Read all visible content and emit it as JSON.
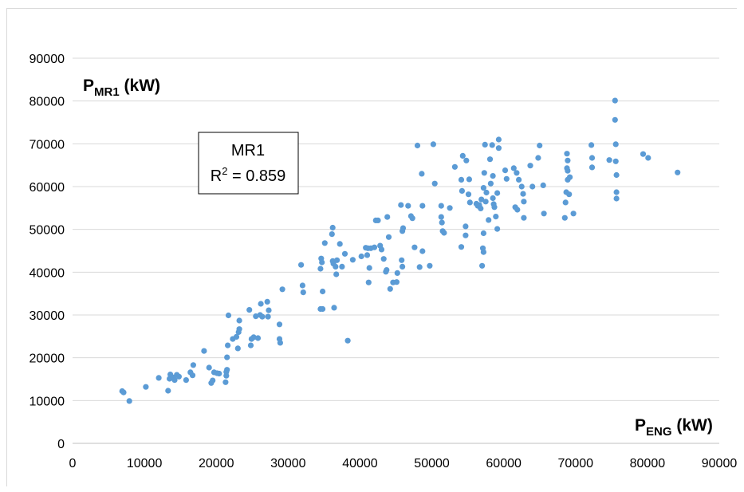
{
  "chart_data": {
    "type": "scatter",
    "xlabel": {
      "main": "P",
      "sub": "ENG",
      "unit": " (kW)"
    },
    "ylabel": {
      "main": "P",
      "sub": "MR1",
      "unit": " (kW)"
    },
    "xlim": [
      0,
      90000
    ],
    "ylim": [
      0,
      90000
    ],
    "xticks": [
      "0",
      "10000",
      "20000",
      "30000",
      "40000",
      "50000",
      "60000",
      "70000",
      "80000",
      "90000"
    ],
    "yticks": [
      "0",
      "10000",
      "20000",
      "30000",
      "40000",
      "50000",
      "60000",
      "70000",
      "80000",
      "90000"
    ],
    "grid": "horizontal",
    "marker_color": "#5b9bd5",
    "annotation": {
      "title": "MR1",
      "r2_label": "R",
      "r2_sup": "2",
      "r2_value": " = 0.859"
    },
    "points": [
      [
        6900,
        12200
      ],
      [
        7100,
        11900
      ],
      [
        7900,
        9900
      ],
      [
        10200,
        13200
      ],
      [
        12000,
        15300
      ],
      [
        13300,
        12300
      ],
      [
        13500,
        15100
      ],
      [
        13600,
        16100
      ],
      [
        14000,
        15400
      ],
      [
        14200,
        14800
      ],
      [
        14500,
        16000
      ],
      [
        14800,
        15600
      ],
      [
        15800,
        14800
      ],
      [
        16400,
        16600
      ],
      [
        16700,
        15900
      ],
      [
        16800,
        18300
      ],
      [
        18300,
        21600
      ],
      [
        19000,
        17700
      ],
      [
        19300,
        14100
      ],
      [
        19500,
        14700
      ],
      [
        19700,
        16600
      ],
      [
        20100,
        16400
      ],
      [
        20400,
        16300
      ],
      [
        21300,
        14300
      ],
      [
        21400,
        15800
      ],
      [
        21400,
        16700
      ],
      [
        21500,
        17200
      ],
      [
        21500,
        20100
      ],
      [
        21600,
        22900
      ],
      [
        21700,
        29900
      ],
      [
        22300,
        24400
      ],
      [
        22800,
        24900
      ],
      [
        23000,
        22200
      ],
      [
        23100,
        26000
      ],
      [
        23200,
        28700
      ],
      [
        23200,
        26700
      ],
      [
        24600,
        31200
      ],
      [
        24800,
        22900
      ],
      [
        24900,
        24400
      ],
      [
        25200,
        24800
      ],
      [
        25500,
        29700
      ],
      [
        25800,
        24600
      ],
      [
        26100,
        30000
      ],
      [
        26200,
        32600
      ],
      [
        26400,
        29600
      ],
      [
        27100,
        33100
      ],
      [
        27200,
        29600
      ],
      [
        27300,
        31100
      ],
      [
        28800,
        27800
      ],
      [
        28800,
        24400
      ],
      [
        28900,
        23500
      ],
      [
        29200,
        36000
      ],
      [
        31800,
        41700
      ],
      [
        32000,
        36900
      ],
      [
        32100,
        35300
      ],
      [
        34500,
        31400
      ],
      [
        34500,
        40800
      ],
      [
        34600,
        43200
      ],
      [
        34700,
        42300
      ],
      [
        34800,
        35500
      ],
      [
        34800,
        31400
      ],
      [
        35100,
        46800
      ],
      [
        36100,
        48900
      ],
      [
        36200,
        50400
      ],
      [
        36200,
        42600
      ],
      [
        36300,
        42000
      ],
      [
        36400,
        31700
      ],
      [
        36600,
        41300
      ],
      [
        36700,
        39500
      ],
      [
        36800,
        42800
      ],
      [
        37200,
        46600
      ],
      [
        37500,
        41300
      ],
      [
        37900,
        44300
      ],
      [
        38300,
        24000
      ],
      [
        39000,
        42900
      ],
      [
        40200,
        43700
      ],
      [
        40800,
        45700
      ],
      [
        41000,
        44000
      ],
      [
        41100,
        45600
      ],
      [
        41200,
        37600
      ],
      [
        41300,
        41000
      ],
      [
        41500,
        45600
      ],
      [
        42000,
        45800
      ],
      [
        42200,
        52100
      ],
      [
        42500,
        52100
      ],
      [
        42800,
        46200
      ],
      [
        43000,
        45300
      ],
      [
        43300,
        43100
      ],
      [
        43600,
        40100
      ],
      [
        43700,
        40500
      ],
      [
        43800,
        52900
      ],
      [
        44000,
        48200
      ],
      [
        44200,
        36100
      ],
      [
        44600,
        37600
      ],
      [
        45100,
        37700
      ],
      [
        45200,
        39800
      ],
      [
        45700,
        55700
      ],
      [
        45800,
        42800
      ],
      [
        45900,
        41300
      ],
      [
        45900,
        49600
      ],
      [
        46000,
        50300
      ],
      [
        46700,
        55500
      ],
      [
        47100,
        53100
      ],
      [
        47300,
        52600
      ],
      [
        47600,
        45800
      ],
      [
        48000,
        69600
      ],
      [
        48300,
        41200
      ],
      [
        48600,
        63000
      ],
      [
        48700,
        44900
      ],
      [
        48700,
        55500
      ],
      [
        49700,
        41500
      ],
      [
        50200,
        69900
      ],
      [
        50400,
        60700
      ],
      [
        51300,
        55500
      ],
      [
        51300,
        52900
      ],
      [
        51400,
        51600
      ],
      [
        51500,
        49600
      ],
      [
        51700,
        49200
      ],
      [
        52500,
        55000
      ],
      [
        53200,
        64600
      ],
      [
        54100,
        45900
      ],
      [
        54100,
        61600
      ],
      [
        54200,
        59000
      ],
      [
        54300,
        67200
      ],
      [
        54700,
        50700
      ],
      [
        54700,
        48600
      ],
      [
        54800,
        66100
      ],
      [
        55100,
        58200
      ],
      [
        55200,
        61700
      ],
      [
        55300,
        56300
      ],
      [
        56200,
        56000
      ],
      [
        56400,
        55500
      ],
      [
        56600,
        55700
      ],
      [
        56800,
        54900
      ],
      [
        56900,
        57000
      ],
      [
        57000,
        41500
      ],
      [
        57100,
        45600
      ],
      [
        57200,
        44700
      ],
      [
        57200,
        49100
      ],
      [
        57200,
        59700
      ],
      [
        57300,
        63200
      ],
      [
        57400,
        69800
      ],
      [
        57500,
        56500
      ],
      [
        57600,
        58600
      ],
      [
        57900,
        52200
      ],
      [
        58100,
        66400
      ],
      [
        58200,
        60700
      ],
      [
        58400,
        69700
      ],
      [
        58500,
        62500
      ],
      [
        58500,
        57300
      ],
      [
        58600,
        55900
      ],
      [
        58700,
        55200
      ],
      [
        58900,
        53000
      ],
      [
        59100,
        50100
      ],
      [
        59100,
        58500
      ],
      [
        59300,
        71000
      ],
      [
        59300,
        69000
      ],
      [
        60200,
        63800
      ],
      [
        60400,
        61800
      ],
      [
        61400,
        64300
      ],
      [
        61600,
        55200
      ],
      [
        61800,
        63200
      ],
      [
        61900,
        54600
      ],
      [
        62100,
        61600
      ],
      [
        62500,
        60000
      ],
      [
        62700,
        58300
      ],
      [
        62800,
        52700
      ],
      [
        62800,
        56500
      ],
      [
        63700,
        64900
      ],
      [
        64000,
        60000
      ],
      [
        64800,
        66700
      ],
      [
        65000,
        69600
      ],
      [
        65500,
        60300
      ],
      [
        65600,
        53700
      ],
      [
        68500,
        52700
      ],
      [
        68600,
        56300
      ],
      [
        68700,
        58700
      ],
      [
        68800,
        64300
      ],
      [
        68800,
        67700
      ],
      [
        68900,
        66100
      ],
      [
        68900,
        63700
      ],
      [
        68900,
        61600
      ],
      [
        69100,
        58200
      ],
      [
        69200,
        62200
      ],
      [
        69700,
        53700
      ],
      [
        72200,
        69700
      ],
      [
        72300,
        66700
      ],
      [
        72300,
        64500
      ],
      [
        74700,
        66200
      ],
      [
        75500,
        80100
      ],
      [
        75500,
        75600
      ],
      [
        75600,
        69900
      ],
      [
        75600,
        65900
      ],
      [
        75700,
        58700
      ],
      [
        75700,
        62700
      ],
      [
        75700,
        57200
      ],
      [
        79400,
        67600
      ],
      [
        80100,
        66700
      ],
      [
        84200,
        63300
      ]
    ]
  }
}
